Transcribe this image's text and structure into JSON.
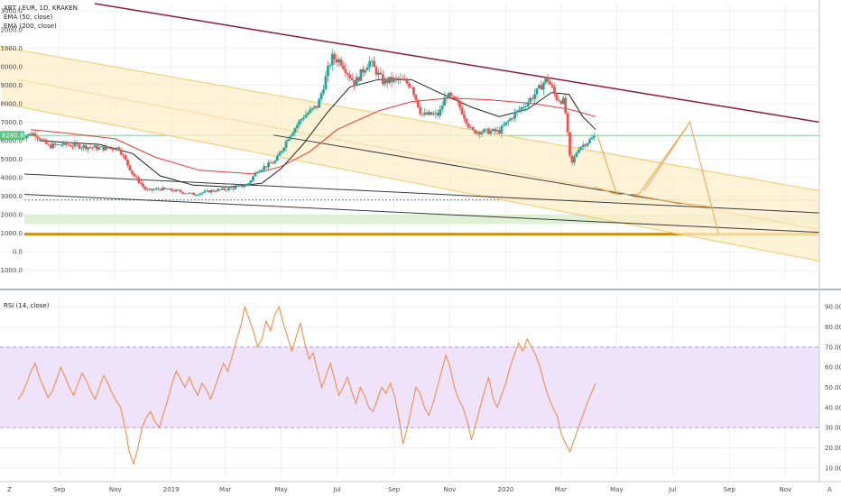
{
  "legend": {
    "symbol": "XBT / EUR, 1D, KRAKEN",
    "ema50": "EMA (50, close)",
    "ema200": "EMA (200, close)",
    "rsi": "RSI (14, close)"
  },
  "price_badge": "6280.8",
  "corner_labels": {
    "bottom_left": "Z",
    "bottom_right": "A"
  },
  "colors": {
    "candle_up": "#26a69a",
    "candle_down": "#ef5350",
    "ema50": "#1f1f1f",
    "ema200": "#e53935",
    "channel_fill": "#fdeec9",
    "resistance": "#8b1a3a",
    "support_gold": "#c8900c",
    "zone_green": "#dcefcf",
    "rsi_line": "#f0843c",
    "rsi_band": "#efe3fb",
    "price_line": "#7fcf9a"
  },
  "chart_data": [
    {
      "type": "candlestick",
      "title": "XBT / EUR, 1D, KRAKEN",
      "x_ticks": [
        "Sep",
        "Nov",
        "2019",
        "Mar",
        "May",
        "Jul",
        "Sep",
        "Nov",
        "2020",
        "Mar",
        "May",
        "Jul",
        "Sep",
        "Nov"
      ],
      "y_ticks": [
        "13000.0",
        "12000.0",
        "11000.0",
        "10000.0",
        "9000.0",
        "8000.0",
        "7000.0",
        "6000.0",
        "5000.0",
        "4000.0",
        "3000.0",
        "2000.0",
        "1000.0",
        "0.0",
        "-1000.0"
      ],
      "ylim": [
        -1500,
        13400
      ],
      "last_price": 6280.8,
      "series": [
        {
          "name": "XBT / EUR",
          "points": [
            [
              "Jul 20",
              6200
            ],
            [
              "Aug 5",
              6400
            ],
            [
              "Aug 20",
              5700
            ],
            [
              "Sep 5",
              5800
            ],
            [
              "Sep 25",
              5700
            ],
            [
              "Oct 15",
              5600
            ],
            [
              "Nov 5",
              5600
            ],
            [
              "Nov 20",
              4200
            ],
            [
              "Dec 5",
              3300
            ],
            [
              "Dec 20",
              3400
            ],
            [
              "Jan 5",
              3300
            ],
            [
              "Jan 25",
              3100
            ],
            [
              "Feb 15",
              3300
            ],
            [
              "Mar 5",
              3400
            ],
            [
              "Mar 25",
              3600
            ],
            [
              "Apr 5",
              4400
            ],
            [
              "Apr 25",
              4900
            ],
            [
              "May 10",
              6300
            ],
            [
              "May 25",
              7300
            ],
            [
              "Jun 10",
              7900
            ],
            [
              "Jun 25",
              10500
            ],
            [
              "Jul 5",
              10300
            ],
            [
              "Jul 20",
              9100
            ],
            [
              "Aug 5",
              10300
            ],
            [
              "Aug 20",
              9200
            ],
            [
              "Sep 5",
              9300
            ],
            [
              "Sep 20",
              9000
            ],
            [
              "Oct 1",
              7400
            ],
            [
              "Oct 20",
              7400
            ],
            [
              "Oct 28",
              8500
            ],
            [
              "Nov 10",
              8000
            ],
            [
              "Nov 25",
              6500
            ],
            [
              "Dec 10",
              6500
            ],
            [
              "Dec 25",
              6500
            ],
            [
              "Jan 10",
              7400
            ],
            [
              "Jan 25",
              8100
            ],
            [
              "Feb 5",
              8700
            ],
            [
              "Feb 15",
              9400
            ],
            [
              "Feb 25",
              8300
            ],
            [
              "Mar 5",
              8100
            ],
            [
              "Mar 12",
              4600
            ],
            [
              "Mar 20",
              5600
            ],
            [
              "Apr 1",
              6000
            ],
            [
              "Apr 8",
              6280
            ]
          ]
        },
        {
          "name": "EMA (50, close)",
          "points": [
            [
              "Aug 10",
              6000
            ],
            [
              "Sep 10",
              5900
            ],
            [
              "Oct 15",
              5800
            ],
            [
              "Nov 20",
              5300
            ],
            [
              "Dec 20",
              4100
            ],
            [
              "Jan 25",
              3600
            ],
            [
              "Mar 5",
              3500
            ],
            [
              "Apr 10",
              3700
            ],
            [
              "May 1",
              4500
            ],
            [
              "May 25",
              5800
            ],
            [
              "Jun 20",
              7500
            ],
            [
              "Jul 15",
              8900
            ],
            [
              "Aug 15",
              9300
            ],
            [
              "Sep 20",
              9300
            ],
            [
              "Oct 20",
              8600
            ],
            [
              "Nov 25",
              7800
            ],
            [
              "Dec 25",
              7300
            ],
            [
              "Jan 25",
              7700
            ],
            [
              "Feb 20",
              8600
            ],
            [
              "Mar 10",
              8500
            ],
            [
              "Mar 25",
              7300
            ],
            [
              "Apr 8",
              6600
            ]
          ]
        },
        {
          "name": "EMA (200, close)",
          "points": [
            [
              "Aug 1",
              6600
            ],
            [
              "Sep 10",
              6400
            ],
            [
              "Nov 1",
              6100
            ],
            [
              "Dec 15",
              5100
            ],
            [
              "Feb 1",
              4400
            ],
            [
              "Apr 1",
              4200
            ],
            [
              "May 1",
              4600
            ],
            [
              "Jun 1",
              5400
            ],
            [
              "Jul 1",
              6600
            ],
            [
              "Aug 15",
              7600
            ],
            [
              "Sep 20",
              8100
            ],
            [
              "Nov 1",
              8300
            ],
            [
              "Dec 15",
              8200
            ],
            [
              "Feb 1",
              8000
            ],
            [
              "Mar 10",
              7700
            ],
            [
              "Apr 8",
              7300
            ]
          ]
        }
      ]
    },
    {
      "type": "line",
      "title": "RSI (14, close)",
      "y_ticks": [
        "90.00",
        "80.00",
        "70.00",
        "60.00",
        "50.00",
        "40.00",
        "30.00",
        "20.00",
        "10.00"
      ],
      "ylim": [
        5,
        95
      ],
      "band": [
        30,
        70
      ],
      "series": [
        {
          "name": "RSI (14, close)",
          "values": [
            44,
            47,
            52,
            58,
            62,
            55,
            50,
            45,
            48,
            54,
            60,
            55,
            50,
            46,
            52,
            57,
            53,
            48,
            44,
            50,
            56,
            52,
            47,
            43,
            40,
            30,
            18,
            12,
            20,
            30,
            35,
            38,
            33,
            30,
            37,
            44,
            52,
            58,
            54,
            50,
            55,
            50,
            46,
            52,
            49,
            44,
            50,
            56,
            62,
            58,
            65,
            73,
            80,
            90,
            84,
            78,
            70,
            74,
            83,
            78,
            86,
            90,
            82,
            75,
            68,
            75,
            82,
            72,
            64,
            67,
            58,
            50,
            56,
            62,
            54,
            46,
            50,
            55,
            48,
            42,
            50,
            46,
            40,
            38,
            44,
            50,
            47,
            52,
            46,
            35,
            22,
            30,
            40,
            50,
            47,
            40,
            36,
            42,
            50,
            58,
            66,
            60,
            50,
            44,
            40,
            33,
            24,
            32,
            40,
            48,
            55,
            45,
            40,
            46,
            52,
            60,
            66,
            72,
            68,
            74,
            70,
            66,
            60,
            52,
            45,
            40,
            36,
            27,
            22,
            18,
            24,
            30,
            36,
            42,
            47,
            52
          ]
        }
      ]
    }
  ]
}
